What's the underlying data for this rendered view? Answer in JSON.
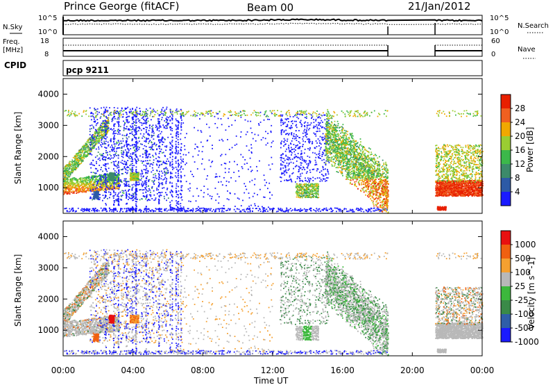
{
  "header": {
    "station": "Prince George (fitACF)",
    "beam": "Beam 00",
    "date": "21/Jan/2012"
  },
  "summary_panels": {
    "nsky_label": "N.Sky",
    "nsearch_label": "N.Search",
    "count_ticks": [
      "10^5",
      "10^0"
    ],
    "freq_label": "Freq.",
    "freq_unit": "[MHz]",
    "freq_ticks": [
      "18",
      "8"
    ],
    "nave_label": "Nave",
    "nave_ticks": [
      "60",
      "0"
    ],
    "cpid_label": "CPID",
    "cpid_value": "pcp 9211"
  },
  "chart_data": [
    {
      "type": "heatmap",
      "name": "power",
      "ylabel": "Slant Range [km]",
      "ylim": [
        180,
        4500
      ],
      "yticks": [
        "1000",
        "2000",
        "3000",
        "4000"
      ],
      "colorbar_label": "Power [dB]",
      "colorbar_ticks": [
        "4",
        "8",
        "12",
        "16",
        "20",
        "24",
        "28"
      ],
      "colors": [
        "#1a1aff",
        "#2d5aa6",
        "#3c8a6a",
        "#3cb84a",
        "#9acd32",
        "#f0a800",
        "#f06020",
        "#e82000"
      ],
      "range": [
        0,
        32
      ]
    },
    {
      "type": "heatmap",
      "name": "velocity",
      "ylabel": "Slant Range [km]",
      "ylim": [
        180,
        4500
      ],
      "yticks": [
        "1000",
        "2000",
        "3000",
        "4000"
      ],
      "colorbar_label": "Velocity [m s^-1]",
      "colorbar_ticks": [
        "1000",
        "500",
        "100",
        "25",
        "-25",
        "-100",
        "-500",
        "-1000"
      ],
      "colors": [
        "#1a1aff",
        "#2f5ea8",
        "#3a8a48",
        "#3cb83c",
        "#b8b8b8",
        "#f5a030",
        "#f06010",
        "#e81010"
      ],
      "range": [
        -1250,
        1250
      ]
    }
  ],
  "time_axis": {
    "label": "Time UT",
    "ticks": [
      "00:00",
      "04:00",
      "08:00",
      "12:00",
      "16:00",
      "20:00",
      "00:00"
    ]
  }
}
